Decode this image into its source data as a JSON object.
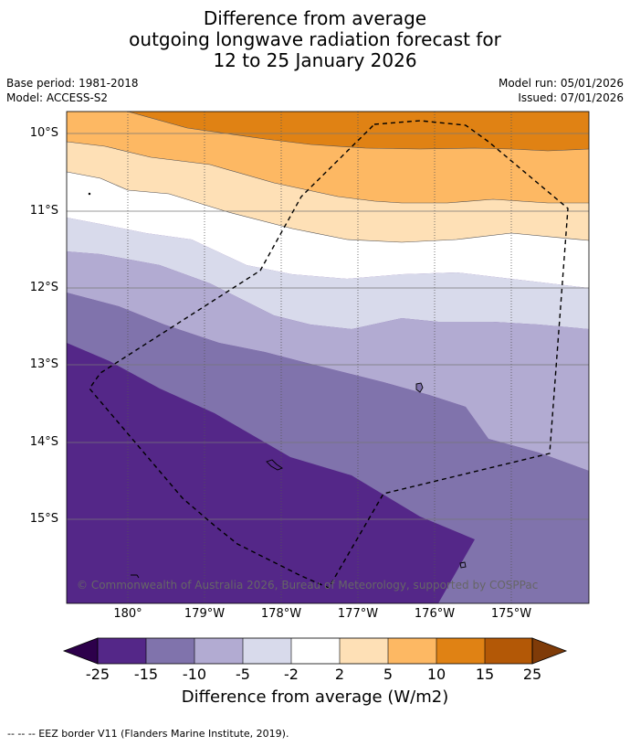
{
  "header": {
    "title_line1": "Difference from average",
    "title_line2": "outgoing longwave radiation forecast for",
    "title_line3": "12 to 25 January 2026",
    "base_period": "Base period: 1981-2018",
    "model": "Model: ACCESS-S2",
    "model_run": "Model run: 05/01/2026",
    "issued": "Issued: 07/01/2026"
  },
  "map": {
    "lat_labels": [
      "10°S",
      "11°S",
      "12°S",
      "13°S",
      "14°S",
      "15°S"
    ],
    "lon_labels": [
      "180°",
      "179°W",
      "178°W",
      "177°W",
      "176°W",
      "175°W"
    ],
    "copyright": "© Commonwealth of Australia 2026, Bureau of Meteorology, supported by COSPPac",
    "band_colors": [
      "#e08214",
      "#fdb863",
      "#fee0b6",
      "#ffffff",
      "#d8daeb",
      "#b2abd2",
      "#8073ac",
      "#542788"
    ]
  },
  "colorbar": {
    "colors": [
      "#2d004b",
      "#542788",
      "#8073ac",
      "#b2abd2",
      "#d8daeb",
      "#ffffff",
      "#fee0b6",
      "#fdb863",
      "#e08214",
      "#b35806",
      "#7f3b08"
    ],
    "ticks": [
      "-25",
      "-15",
      "-10",
      "-5",
      "-2",
      "2",
      "5",
      "10",
      "15",
      "25"
    ],
    "title": "Difference from average (W/m2)"
  },
  "footnote": "--  --  -- EEZ border V11 (Flanders Marine Institute, 2019)."
}
